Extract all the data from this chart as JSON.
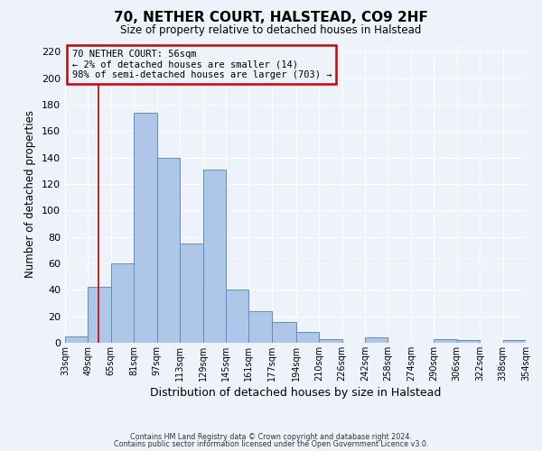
{
  "title": "70, NETHER COURT, HALSTEAD, CO9 2HF",
  "subtitle": "Size of property relative to detached houses in Halstead",
  "xlabel": "Distribution of detached houses by size in Halstead",
  "ylabel": "Number of detached properties",
  "bin_edges": [
    33,
    49,
    65,
    81,
    97,
    113,
    129,
    145,
    161,
    177,
    194,
    210,
    226,
    242,
    258,
    274,
    290,
    306,
    322,
    338,
    354
  ],
  "bin_labels": [
    "33sqm",
    "49sqm",
    "65sqm",
    "81sqm",
    "97sqm",
    "113sqm",
    "129sqm",
    "145sqm",
    "161sqm",
    "177sqm",
    "194sqm",
    "210sqm",
    "226sqm",
    "242sqm",
    "258sqm",
    "274sqm",
    "290sqm",
    "306sqm",
    "322sqm",
    "338sqm",
    "354sqm"
  ],
  "bar_heights": [
    5,
    42,
    60,
    174,
    140,
    75,
    131,
    40,
    24,
    16,
    8,
    3,
    0,
    4,
    0,
    0,
    3,
    2,
    0,
    2
  ],
  "bar_color": "#aec6e8",
  "bar_edge_color": "#5a8fc2",
  "property_line_x": 56,
  "property_line_color": "#cc0000",
  "annotation_text": "70 NETHER COURT: 56sqm\n← 2% of detached houses are smaller (14)\n98% of semi-detached houses are larger (703) →",
  "annotation_box_color": "#cc0000",
  "ylim": [
    0,
    225
  ],
  "yticks": [
    0,
    20,
    40,
    60,
    80,
    100,
    120,
    140,
    160,
    180,
    200,
    220
  ],
  "footer_line1": "Contains HM Land Registry data © Crown copyright and database right 2024.",
  "footer_line2": "Contains public sector information licensed under the Open Government Licence v3.0.",
  "background_color": "#eef2fa",
  "grid_color": "#ffffff"
}
